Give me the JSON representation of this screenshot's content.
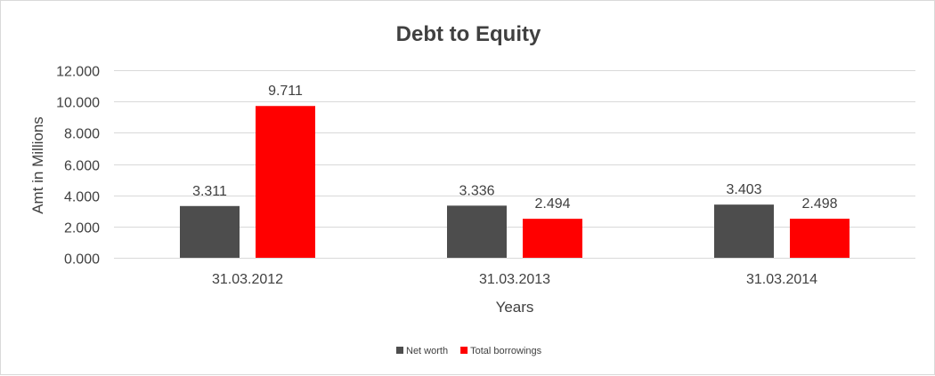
{
  "chart_data": {
    "type": "bar",
    "title": "Debt to Equity",
    "xlabel": "Years",
    "ylabel": "Amt in Millions",
    "categories": [
      "31.03.2012",
      "31.03.2013",
      "31.03.2014"
    ],
    "series": [
      {
        "name": "Net worth",
        "values": [
          3.311,
          3.336,
          3.403
        ],
        "labels": [
          "3.311",
          "3.336",
          "3.403"
        ],
        "color": "#4d4d4d"
      },
      {
        "name": "Total borrowings",
        "values": [
          9.711,
          2.494,
          2.498
        ],
        "labels": [
          "9.711",
          "2.494",
          "2.498"
        ],
        "color": "#ff0000"
      }
    ],
    "ylim": [
      0,
      12
    ],
    "yticks": [
      0,
      2,
      4,
      6,
      8,
      10,
      12
    ],
    "ytick_labels": [
      "0.000",
      "2.000",
      "4.000",
      "6.000",
      "8.000",
      "10.000",
      "12.000"
    ],
    "grid": true,
    "legend_position": "bottom",
    "gridline_color": "#d9d9d9"
  }
}
